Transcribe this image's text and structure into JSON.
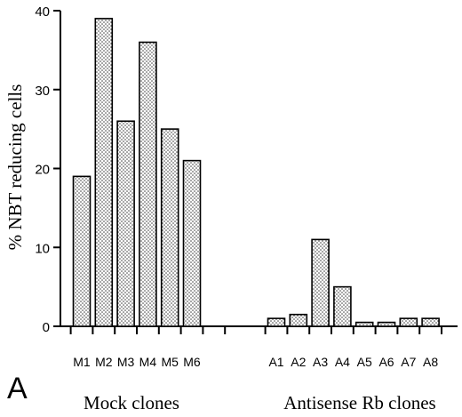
{
  "chart_data": {
    "type": "bar",
    "panel_label": "A",
    "ylabel": "% NBT reducing cells",
    "xlabel": "",
    "ylim": [
      0,
      40
    ],
    "yticks": [
      0,
      10,
      20,
      30,
      40
    ],
    "grid": false,
    "legend": "none",
    "bar_pattern": "dotted",
    "colors": {
      "bar_fill": "#ffffff",
      "dot": "#333333",
      "axis": "#000000"
    },
    "groups": [
      {
        "label": "Mock clones",
        "categories": [
          "M1",
          "M2",
          "M3",
          "M4",
          "M5",
          "M6"
        ]
      },
      {
        "label": "Antisense Rb clones",
        "categories": [
          "A1",
          "A2",
          "A3",
          "A4",
          "A5",
          "A6",
          "A7",
          "A8"
        ]
      }
    ],
    "categories": [
      "M1",
      "M2",
      "M3",
      "M4",
      "M5",
      "M6",
      "A1",
      "A2",
      "A3",
      "A4",
      "A5",
      "A6",
      "A7",
      "A8"
    ],
    "values": [
      19,
      39,
      26,
      36,
      25,
      21,
      1,
      1.5,
      11,
      5,
      0.5,
      0.5,
      1,
      1
    ]
  }
}
